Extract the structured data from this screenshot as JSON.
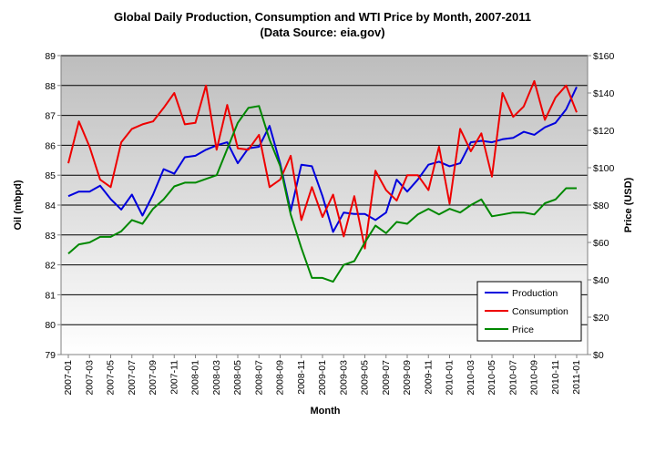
{
  "chart_data": {
    "type": "line",
    "title": "Global Daily Production, Consumption and WTI Price by Month, 2007-2011",
    "subtitle": "(Data Source: eia.gov)",
    "xlabel": "Month",
    "ylabel_left": "Oil (mbpd)",
    "ylabel_right": "Price (USD)",
    "ylim_left": [
      79,
      89
    ],
    "ylim_right": [
      0,
      160
    ],
    "y_ticks_left": [
      "79",
      "80",
      "81",
      "82",
      "83",
      "84",
      "85",
      "86",
      "87",
      "88",
      "89"
    ],
    "y_ticks_right": [
      "$0",
      "$20",
      "$40",
      "$60",
      "$80",
      "$100",
      "$120",
      "$140",
      "$160"
    ],
    "grid": true,
    "legend_position": "bottom-right",
    "x_tick_labels": [
      "2007-01",
      "2007-03",
      "2007-05",
      "2007-07",
      "2007-09",
      "2007-11",
      "2008-01",
      "2008-03",
      "2008-05",
      "2008-07",
      "2008-09",
      "2008-11",
      "2009-01",
      "2009-03",
      "2009-05",
      "2009-07",
      "2009-09",
      "2009-11",
      "2010-01",
      "2010-03",
      "2010-05",
      "2010-07",
      "2010-09",
      "2010-11",
      "2011-01"
    ],
    "x": [
      "2007-01",
      "2007-02",
      "2007-03",
      "2007-04",
      "2007-05",
      "2007-06",
      "2007-07",
      "2007-08",
      "2007-09",
      "2007-10",
      "2007-11",
      "2007-12",
      "2008-01",
      "2008-02",
      "2008-03",
      "2008-04",
      "2008-05",
      "2008-06",
      "2008-07",
      "2008-08",
      "2008-09",
      "2008-10",
      "2008-11",
      "2008-12",
      "2009-01",
      "2009-02",
      "2009-03",
      "2009-04",
      "2009-05",
      "2009-06",
      "2009-07",
      "2009-08",
      "2009-09",
      "2009-10",
      "2009-11",
      "2009-12",
      "2010-01",
      "2010-02",
      "2010-03",
      "2010-04",
      "2010-05",
      "2010-06",
      "2010-07",
      "2010-08",
      "2010-09",
      "2010-10",
      "2010-11",
      "2010-12",
      "2011-01"
    ],
    "series": [
      {
        "name": "Production",
        "axis": "left",
        "color": "#0000dd",
        "values": [
          84.3,
          84.45,
          84.45,
          84.65,
          84.2,
          83.85,
          84.35,
          83.65,
          84.35,
          85.2,
          85.05,
          85.6,
          85.65,
          85.85,
          86.0,
          86.1,
          85.4,
          85.9,
          85.95,
          86.65,
          85.4,
          83.8,
          85.35,
          85.3,
          84.3,
          83.1,
          83.75,
          83.7,
          83.7,
          83.5,
          83.75,
          84.85,
          84.45,
          84.85,
          85.35,
          85.45,
          85.3,
          85.4,
          86.1,
          86.15,
          86.1,
          86.2,
          86.25,
          86.45,
          86.35,
          86.6,
          86.75,
          87.2,
          87.95
        ]
      },
      {
        "name": "Consumption",
        "axis": "left",
        "color": "#ee0000",
        "values": [
          85.4,
          86.8,
          85.95,
          84.85,
          84.6,
          86.1,
          86.55,
          86.7,
          86.8,
          87.25,
          87.75,
          86.7,
          86.75,
          88.0,
          85.85,
          87.35,
          85.9,
          85.85,
          86.35,
          84.6,
          84.85,
          85.65,
          83.5,
          84.6,
          83.6,
          84.35,
          82.95,
          84.3,
          82.55,
          85.15,
          84.5,
          84.15,
          85.0,
          85.0,
          84.5,
          85.95,
          84.05,
          86.55,
          85.8,
          86.4,
          84.95,
          87.75,
          86.95,
          87.3,
          88.15,
          86.85,
          87.6,
          88.0,
          87.1
        ]
      },
      {
        "name": "Price",
        "axis": "right",
        "color": "#008800",
        "values": [
          54,
          59,
          60,
          63,
          63,
          66,
          72,
          70,
          78,
          83,
          90,
          92,
          92,
          94,
          96,
          110,
          124,
          132,
          133,
          115,
          101,
          75,
          57,
          41,
          41,
          39,
          48,
          50,
          60,
          69,
          65,
          71,
          70,
          75,
          78,
          75,
          78,
          76,
          80,
          83,
          74,
          75,
          76,
          76,
          75,
          81,
          83,
          89,
          89
        ]
      }
    ]
  }
}
